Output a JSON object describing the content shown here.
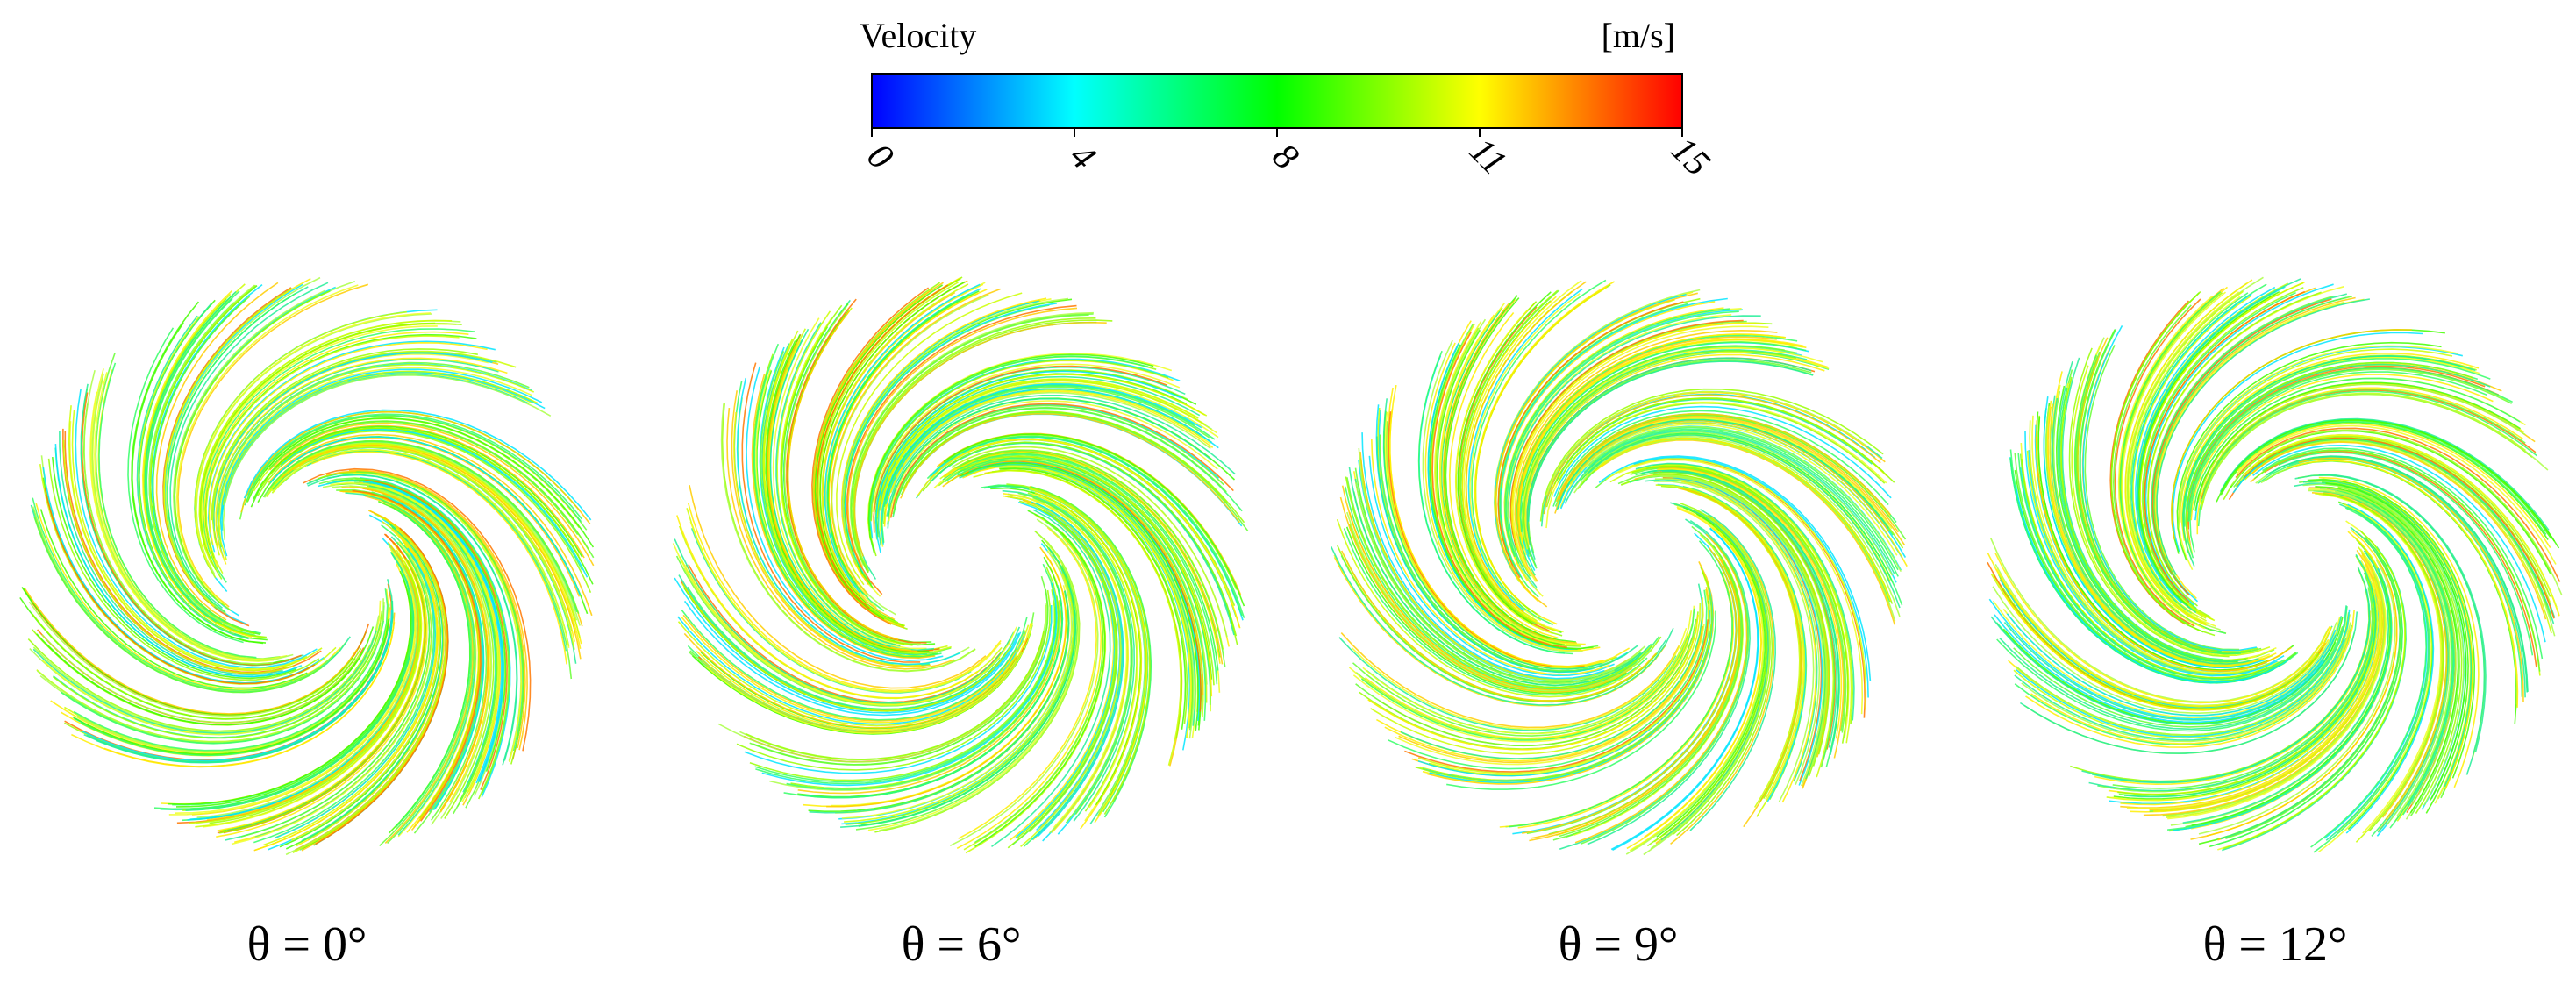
{
  "colorbar": {
    "title": "Velocity",
    "unit": "[m/s]",
    "ticks": [
      "0",
      "4",
      "8",
      "11",
      "15"
    ]
  },
  "panels": [
    {
      "label": "θ = 0°"
    },
    {
      "label": "θ = 6°"
    },
    {
      "label": "θ = 9°"
    },
    {
      "label": "θ = 12°"
    }
  ]
}
